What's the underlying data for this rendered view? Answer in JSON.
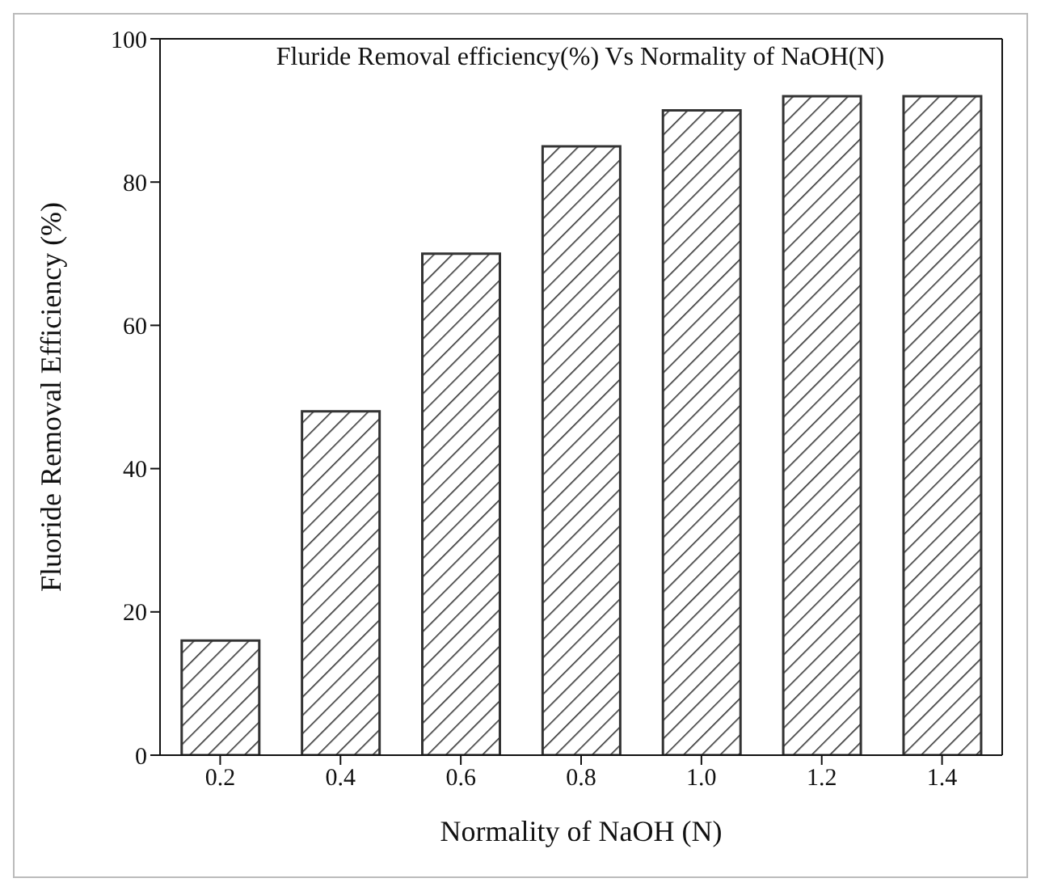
{
  "chart_data": {
    "type": "bar",
    "title": "Fluride Removal efficiency(%) Vs Normality of NaOH(N)",
    "xlabel": "Normality of NaOH (N)",
    "ylabel": "Fluoride Removal Efficiency (%)",
    "categories": [
      "0.2",
      "0.4",
      "0.6",
      "0.8",
      "1.0",
      "1.2",
      "1.4"
    ],
    "values": [
      16,
      48,
      70,
      85,
      90,
      92,
      92
    ],
    "color": "#333333",
    "ylim": [
      0,
      100
    ],
    "yticks": [
      0,
      20,
      40,
      60,
      80,
      100
    ]
  }
}
